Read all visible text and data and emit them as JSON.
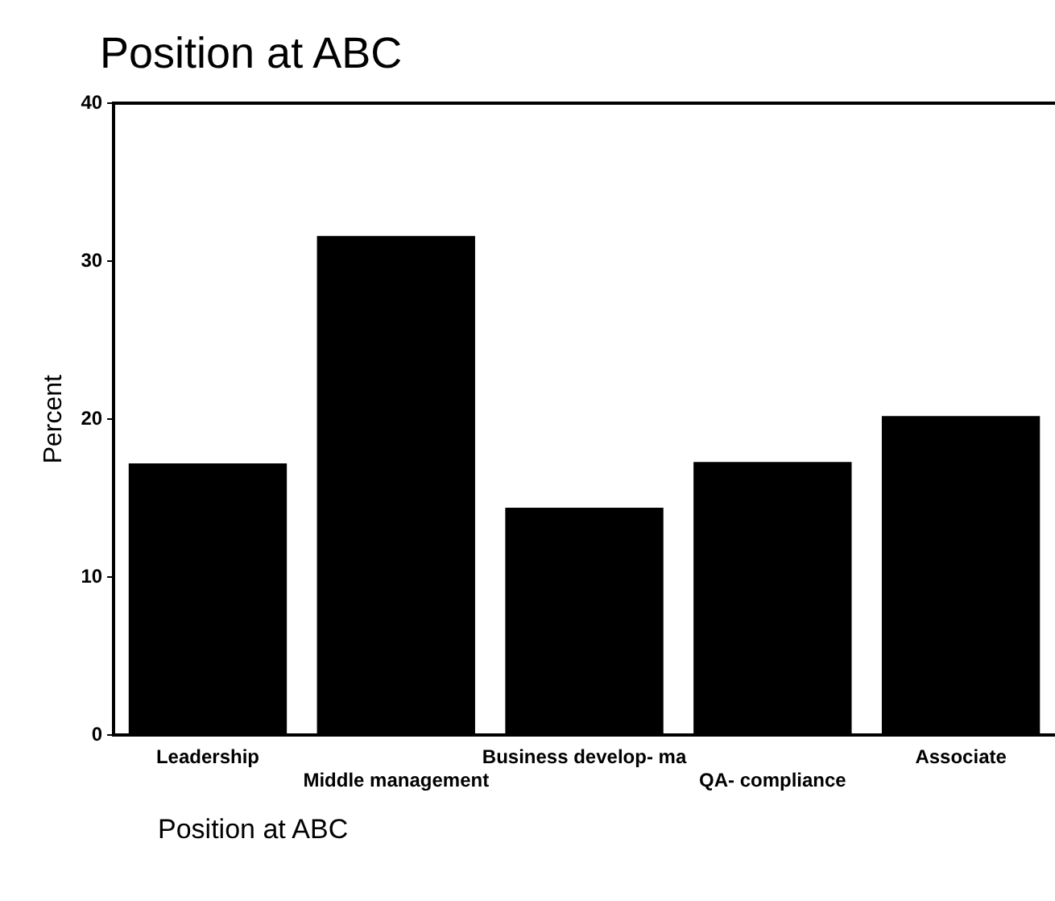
{
  "chart_data": {
    "type": "bar",
    "title": "Position at ABC",
    "ylabel": "Percent",
    "categories": [
      "Leadership",
      "Middle management",
      "Business develop- ma",
      "QA- compliance",
      "Associate"
    ],
    "values": [
      17.2,
      31.6,
      14.4,
      17.3,
      20.2
    ],
    "color": "#000000",
    "ylim": [
      0,
      40
    ],
    "yticks": [
      0,
      10,
      20,
      30,
      40
    ],
    "grid": false,
    "legend": false,
    "annotations": [
      "Position at ABC"
    ]
  }
}
